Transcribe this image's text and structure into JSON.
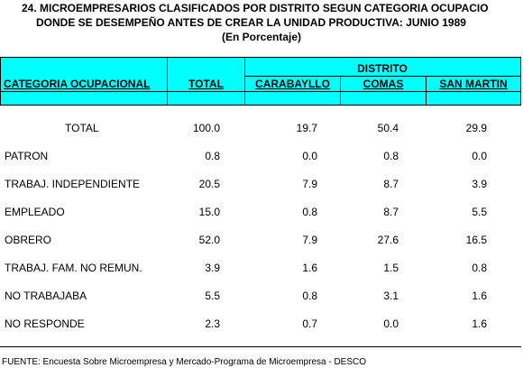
{
  "title": {
    "line1": "24. MICROEMPRESARIOS CLASIFICADOS POR DISTRITO SEGUN CATEGORIA OCUPACIO",
    "line2": "DONDE SE DESEMPEÑO ANTES DE CREAR LA UNIDAD PRODUCTIVA: JUNIO 1989",
    "line3": "(En Porcentaje)"
  },
  "header": {
    "distrito": "DISTRITO",
    "columns": [
      "CATEGORIA OCUPACIONAL",
      "TOTAL",
      "CARABAYLLO",
      "COMAS",
      "SAN MARTIN"
    ]
  },
  "rows": [
    {
      "label": "TOTAL",
      "values": [
        "100.0",
        "19.7",
        "50.4",
        "29.9"
      ]
    },
    {
      "label": "PATRON",
      "values": [
        "0.8",
        "0.0",
        "0.8",
        "0.0"
      ]
    },
    {
      "label": "TRABAJ. INDEPENDIENTE",
      "values": [
        "20.5",
        "7.9",
        "8.7",
        "3.9"
      ]
    },
    {
      "label": "EMPLEADO",
      "values": [
        "15.0",
        "0.8",
        "8.7",
        "5.5"
      ]
    },
    {
      "label": "OBRERO",
      "values": [
        "52.0",
        "7.9",
        "27.6",
        "16.5"
      ]
    },
    {
      "label": "TRABAJ. FAM. NO REMUN.",
      "values": [
        "3.9",
        "1.6",
        "1.5",
        "0.8"
      ]
    },
    {
      "label": "NO TRABAJABA",
      "values": [
        "5.5",
        "0.8",
        "3.1",
        "1.6"
      ]
    },
    {
      "label": "NO RESPONDE",
      "values": [
        "2.3",
        "0.7",
        "0.0",
        "1.6"
      ]
    }
  ],
  "footer": "FUENTE: Encuesta Sobre Microempresa y Mercado-Programa de Microempresa - DESCO",
  "colors": {
    "header_bg": "#00ffff"
  }
}
